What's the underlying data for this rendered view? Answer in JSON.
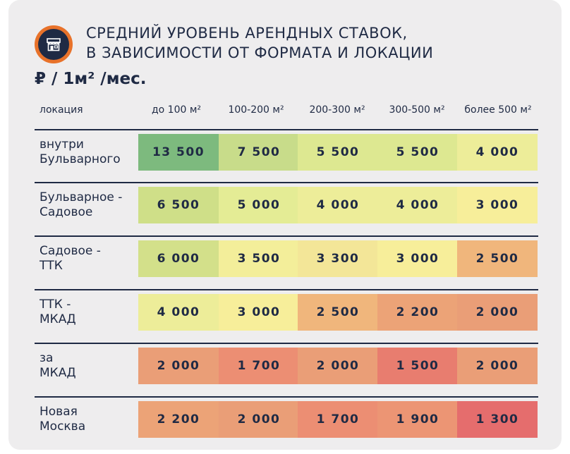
{
  "title_lines": [
    "СРЕДНИЙ УРОВЕНЬ АРЕНДНЫХ СТАВОК,",
    "В ЗАВИСИМОСТИ ОТ ФОРМАТА И ЛОКАЦИИ"
  ],
  "unit": "₽ / 1м² /мес.",
  "logo_icon": "storefront-icon",
  "colors": {
    "panel_bg": "#eeedee",
    "text": "#1f2a44",
    "logo_ring": "#e8722a",
    "scale": {
      "13 500": "#7dba7e",
      "7 500": "#c8dc8a",
      "6 500": "#cfdf88",
      "6 000": "#d3e08a",
      "5 500": "#dde891",
      "5 000": "#e4ec95",
      "4 000": "#eded99",
      "3 500": "#f3ee9a",
      "3 300": "#f3e698",
      "3 000": "#f7ee9a",
      "2 500": "#f0b67c",
      "2 200": "#eca377",
      "2 000": "#ea9e77",
      "1 900": "#ec9574",
      "1 700": "#ec8e73",
      "1 500": "#e87d6f",
      "1 300": "#e56d6d"
    }
  },
  "chart_data": {
    "type": "table",
    "title": "СРЕДНИЙ УРОВЕНЬ АРЕНДНЫХ СТАВОК, В ЗАВИСИМОСТИ ОТ ФОРМАТА И ЛОКАЦИИ",
    "unit": "₽ / 1м² /мес.",
    "columns": [
      "локация",
      "до 100 м²",
      "100-200 м²",
      "200-300 м²",
      "300-500 м²",
      "более 500 м²"
    ],
    "rows": [
      {
        "location": "внутри\nБульварного",
        "values": [
          "13 500",
          "7 500",
          "5 500",
          "5 500",
          "4 000"
        ]
      },
      {
        "location": "Бульварное -\nСадовое",
        "values": [
          "6 500",
          "5 000",
          "4 000",
          "4 000",
          "3 000"
        ]
      },
      {
        "location": "Садовое -\nТТК",
        "values": [
          "6 000",
          "3 500",
          "3 300",
          "3 000",
          "2 500"
        ]
      },
      {
        "location": "ТТК -\nМКАД",
        "values": [
          "4 000",
          "3 000",
          "2 500",
          "2 200",
          "2 000"
        ]
      },
      {
        "location": "за\nМКАД",
        "values": [
          "2 000",
          "1 700",
          "2 000",
          "1 500",
          "2 000"
        ]
      },
      {
        "location": "Новая\nМосква",
        "values": [
          "2 200",
          "2 000",
          "1 700",
          "1 900",
          "1 300"
        ]
      }
    ]
  }
}
